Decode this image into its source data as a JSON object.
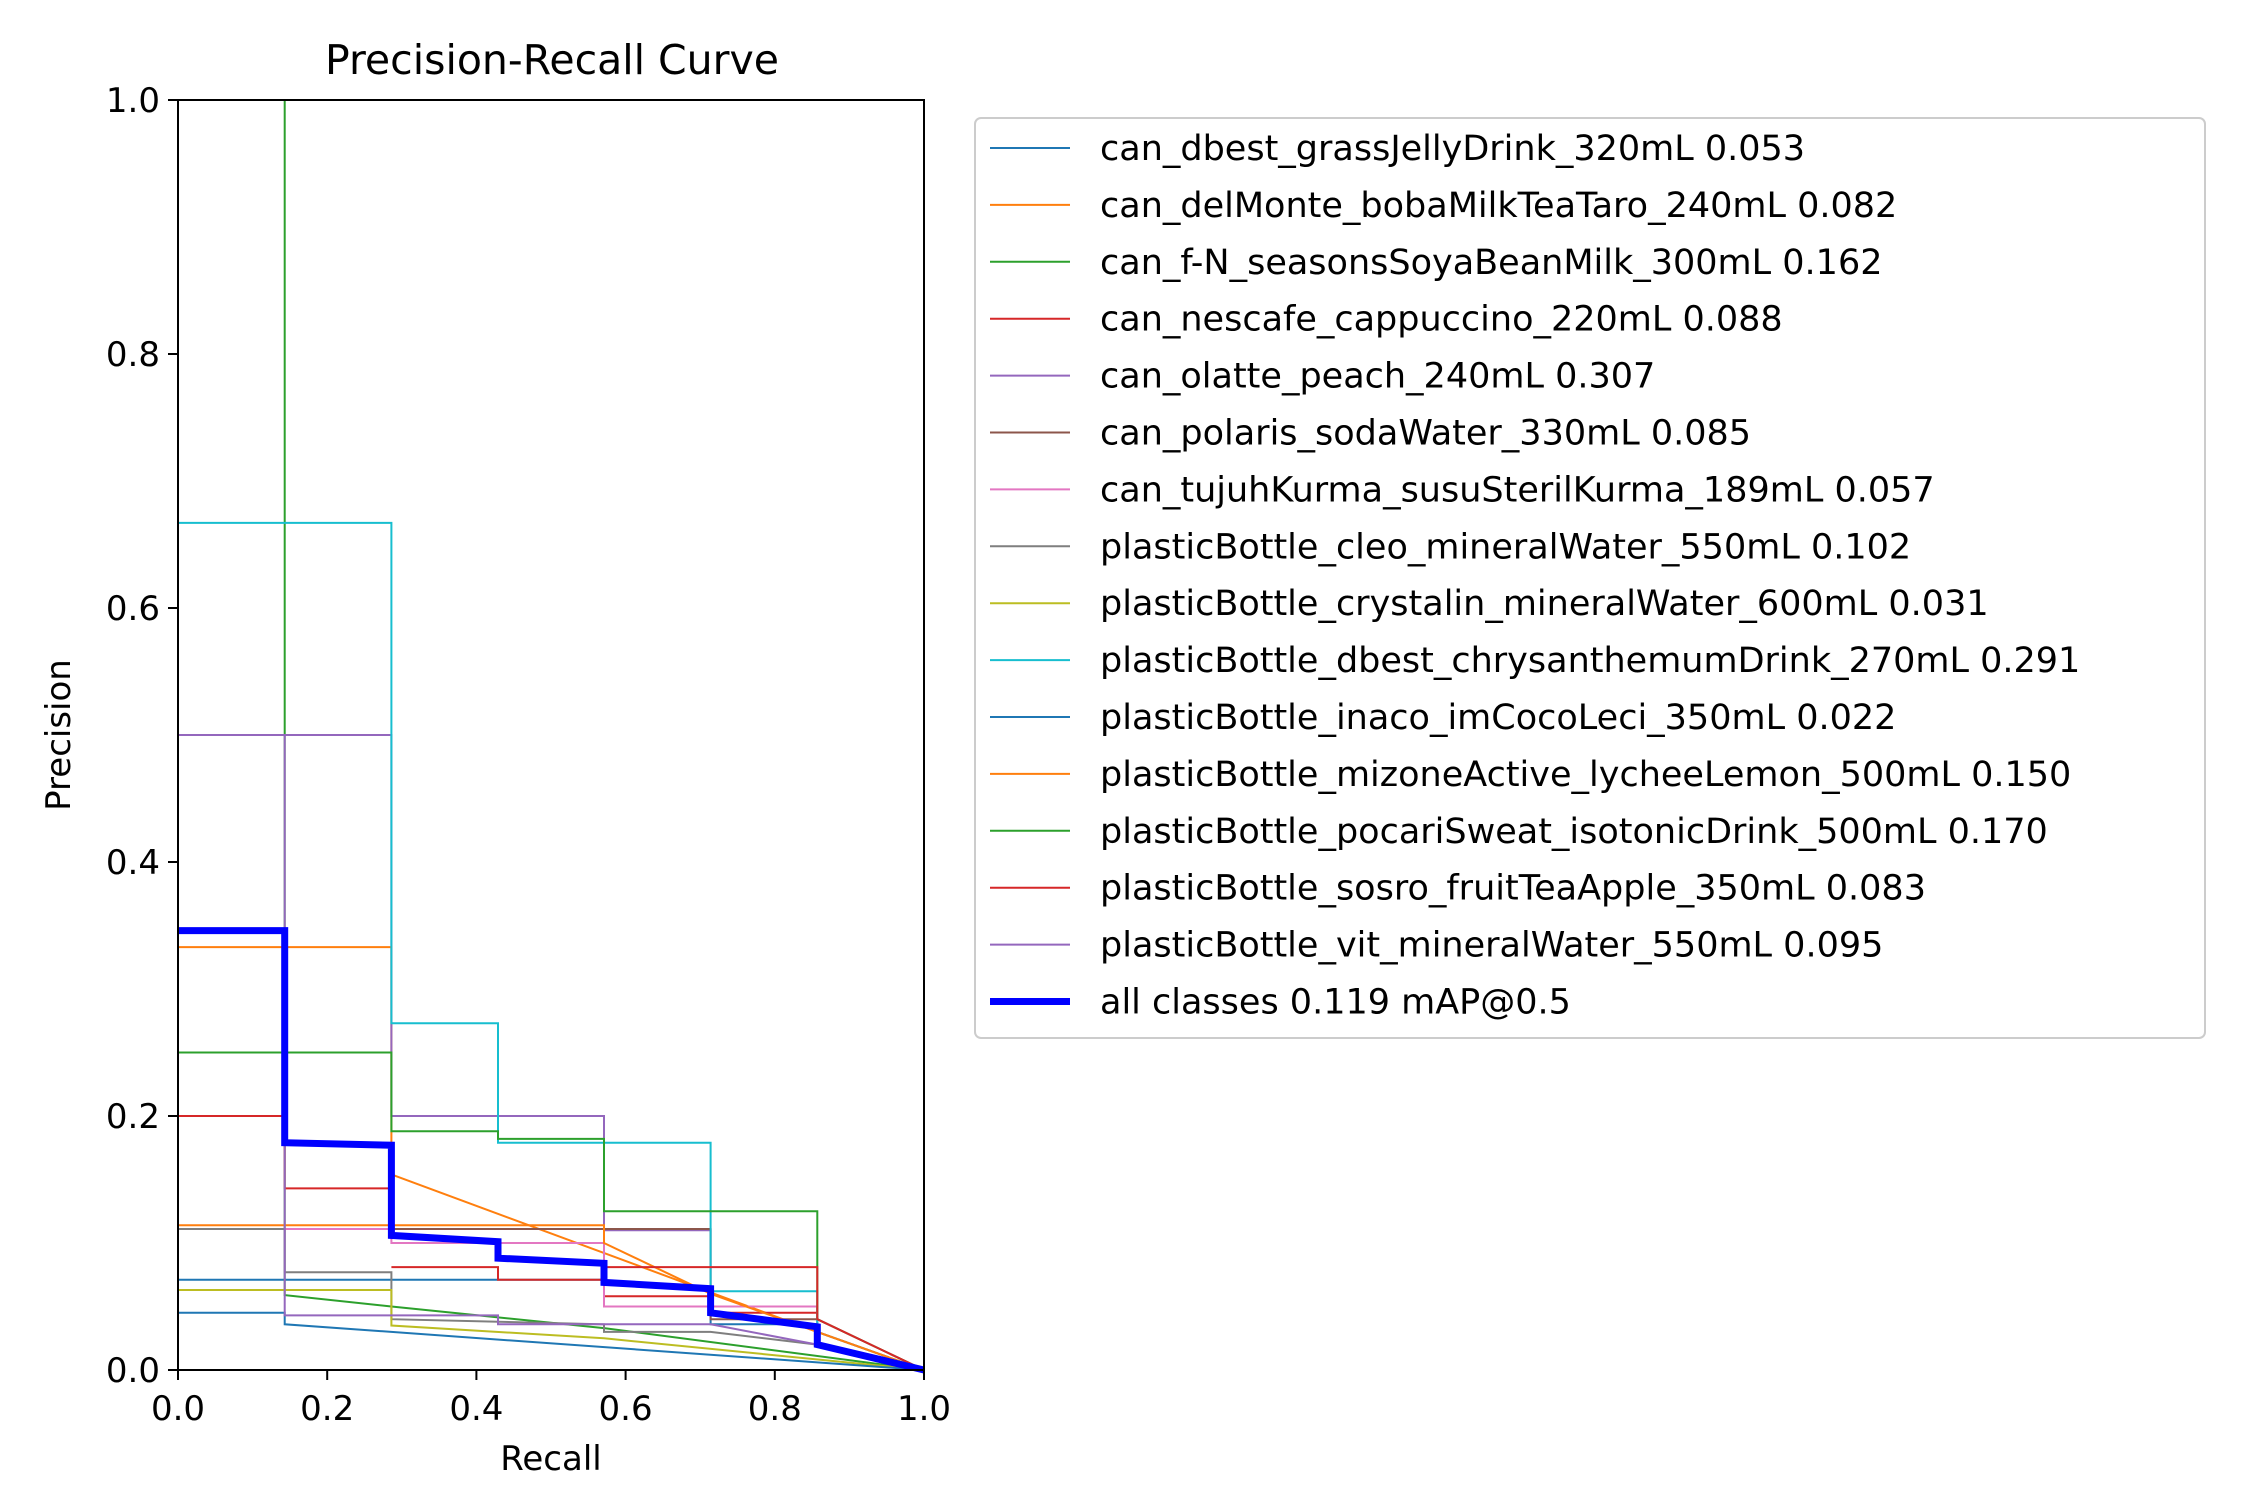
{
  "chart_data": {
    "type": "line",
    "title": "Precision-Recall Curve",
    "xlabel": "Recall",
    "ylabel": "Precision",
    "xlim": [
      0,
      1
    ],
    "ylim": [
      0,
      1
    ],
    "xticks": [
      "0.0",
      "0.2",
      "0.4",
      "0.6",
      "0.8",
      "1.0"
    ],
    "yticks": [
      "0.0",
      "0.2",
      "0.4",
      "0.6",
      "0.8",
      "1.0"
    ],
    "grid": false,
    "legend_position": "outside-right",
    "series": [
      {
        "name": "can_dbest_grassJellyDrink_320mL 0.053",
        "color": "#1f77b4",
        "width": 2,
        "points": [
          [
            0,
            0.071
          ],
          [
            0.286,
            0.071
          ],
          [
            0.286,
            0.071
          ],
          [
            0.571,
            0.071
          ],
          [
            0.571,
            0.05
          ],
          [
            0.714,
            0.05
          ],
          [
            0.714,
            0.036
          ],
          [
            0.857,
            0.036
          ],
          [
            0.857,
            0.02
          ],
          [
            1,
            0
          ]
        ]
      },
      {
        "name": "can_delMonte_bobaMilkTeaTaro_240mL 0.082",
        "color": "#ff7f0e",
        "width": 2,
        "points": [
          [
            0,
            0.333
          ],
          [
            0.286,
            0.333
          ],
          [
            0.286,
            0.154
          ],
          [
            0.857,
            0.03
          ],
          [
            1,
            0
          ]
        ]
      },
      {
        "name": "can_f-N_seasonsSoyaBeanMilk_300mL 0.162",
        "color": "#2ca02c",
        "width": 2,
        "points": [
          [
            0.143,
            1.0
          ],
          [
            0.143,
            0.059
          ],
          [
            0.286,
            0.05
          ],
          [
            0.571,
            0.033
          ],
          [
            1,
            0
          ]
        ]
      },
      {
        "name": "can_nescafe_cappuccino_220mL 0.088",
        "color": "#d62728",
        "width": 2,
        "points": [
          [
            0,
            0.2
          ],
          [
            0.143,
            0.2
          ],
          [
            0.143,
            0.143
          ],
          [
            0.286,
            0.143
          ],
          [
            0.286,
            0.111
          ],
          [
            0.571,
            0.111
          ],
          [
            0.571,
            0.058
          ],
          [
            0.714,
            0.058
          ],
          [
            0.714,
            0.045
          ],
          [
            0.857,
            0.045
          ],
          [
            0.857,
            0.03
          ],
          [
            1,
            0
          ]
        ]
      },
      {
        "name": "can_olatte_peach_240mL 0.307",
        "color": "#9467bd",
        "width": 2,
        "points": [
          [
            0,
            0.5
          ],
          [
            0.286,
            0.5
          ],
          [
            0.286,
            0.2
          ],
          [
            0.429,
            0.2
          ],
          [
            0.571,
            0.2
          ],
          [
            0.571,
            0.11
          ],
          [
            0.714,
            0.11
          ],
          [
            0.714,
            0.05
          ],
          [
            0.857,
            0.05
          ],
          [
            0.857,
            0.02
          ],
          [
            1,
            0
          ]
        ]
      },
      {
        "name": "can_polaris_sodaWater_330mL 0.085",
        "color": "#8c564b",
        "width": 2,
        "points": [
          [
            0,
            0.111
          ],
          [
            0.286,
            0.111
          ],
          [
            0.714,
            0.111
          ],
          [
            0.714,
            0.04
          ],
          [
            0.857,
            0.04
          ],
          [
            1,
            0
          ]
        ]
      },
      {
        "name": "can_tujuhKurma_susuSterilKurma_189mL 0.057",
        "color": "#e377c2",
        "width": 2,
        "points": [
          [
            0,
            0.111
          ],
          [
            0.286,
            0.111
          ],
          [
            0.286,
            0.1
          ],
          [
            0.571,
            0.1
          ],
          [
            0.571,
            0.05
          ],
          [
            0.857,
            0.05
          ],
          [
            0.857,
            0.02
          ],
          [
            1,
            0
          ]
        ]
      },
      {
        "name": "plasticBottle_cleo_mineralWater_550mL 0.102",
        "color": "#7f7f7f",
        "width": 2,
        "points": [
          [
            0,
            0.111
          ],
          [
            0.143,
            0.111
          ],
          [
            0.143,
            0.077
          ],
          [
            0.286,
            0.077
          ],
          [
            0.286,
            0.04
          ],
          [
            0.571,
            0.036
          ],
          [
            0.571,
            0.03
          ],
          [
            0.714,
            0.03
          ],
          [
            0.857,
            0.02
          ],
          [
            1,
            0
          ]
        ]
      },
      {
        "name": "plasticBottle_crystalin_mineralWater_600mL 0.031",
        "color": "#bcbd22",
        "width": 2,
        "points": [
          [
            0,
            0.063
          ],
          [
            0.286,
            0.063
          ],
          [
            0.286,
            0.035
          ],
          [
            0.571,
            0.025
          ],
          [
            1,
            0
          ]
        ]
      },
      {
        "name": "plasticBottle_dbest_chrysanthemumDrink_270mL 0.291",
        "color": "#17becf",
        "width": 2,
        "points": [
          [
            0,
            0.667
          ],
          [
            0.286,
            0.667
          ],
          [
            0.286,
            0.273
          ],
          [
            0.429,
            0.273
          ],
          [
            0.429,
            0.179
          ],
          [
            0.714,
            0.179
          ],
          [
            0.714,
            0.062
          ],
          [
            0.857,
            0.062
          ],
          [
            0.857,
            0.03
          ],
          [
            1,
            0
          ]
        ]
      },
      {
        "name": "plasticBottle_inaco_imCocoLeci_350mL 0.022",
        "color": "#1f77b4",
        "width": 2,
        "points": [
          [
            0,
            0.045
          ],
          [
            0.143,
            0.045
          ],
          [
            0.143,
            0.036
          ],
          [
            1,
            0
          ]
        ]
      },
      {
        "name": "plasticBottle_mizoneActive_lycheeLemon_500mL 0.150",
        "color": "#ff7f0e",
        "width": 2,
        "points": [
          [
            0,
            0.114
          ],
          [
            0.571,
            0.114
          ],
          [
            0.571,
            0.1
          ],
          [
            0.714,
            0.06
          ],
          [
            0.857,
            0.03
          ],
          [
            1,
            0
          ]
        ]
      },
      {
        "name": "plasticBottle_pocariSweat_isotonicDrink_500mL 0.170",
        "color": "#2ca02c",
        "width": 2,
        "points": [
          [
            0,
            0.25
          ],
          [
            0.286,
            0.25
          ],
          [
            0.286,
            0.188
          ],
          [
            0.429,
            0.188
          ],
          [
            0.429,
            0.182
          ],
          [
            0.571,
            0.182
          ],
          [
            0.571,
            0.125
          ],
          [
            0.857,
            0.125
          ],
          [
            0.857,
            0.04
          ],
          [
            1,
            0
          ]
        ]
      },
      {
        "name": "plasticBottle_sosro_fruitTeaApple_350mL 0.083",
        "color": "#d62728",
        "width": 2,
        "points": [
          [
            0.286,
            0.081
          ],
          [
            0.429,
            0.081
          ],
          [
            0.429,
            0.071
          ],
          [
            0.571,
            0.071
          ],
          [
            0.571,
            0.081
          ],
          [
            0.857,
            0.081
          ],
          [
            0.857,
            0.04
          ],
          [
            1,
            0
          ]
        ]
      },
      {
        "name": "plasticBottle_vit_mineralWater_550mL 0.095",
        "color": "#9467bd",
        "width": 2,
        "points": [
          [
            0.143,
            0.5
          ],
          [
            0.143,
            0.043
          ],
          [
            0.429,
            0.043
          ],
          [
            0.429,
            0.036
          ],
          [
            0.714,
            0.036
          ],
          [
            0.857,
            0.02
          ],
          [
            1,
            0
          ]
        ]
      },
      {
        "name": "all classes 0.119 mAP@0.5",
        "color": "#0000ff",
        "width": 7,
        "points": [
          [
            0,
            0.346
          ],
          [
            0.143,
            0.346
          ],
          [
            0.143,
            0.179
          ],
          [
            0.286,
            0.177
          ],
          [
            0.286,
            0.106
          ],
          [
            0.429,
            0.101
          ],
          [
            0.429,
            0.088
          ],
          [
            0.571,
            0.084
          ],
          [
            0.571,
            0.069
          ],
          [
            0.714,
            0.064
          ],
          [
            0.714,
            0.045
          ],
          [
            0.857,
            0.034
          ],
          [
            0.857,
            0.02
          ],
          [
            1,
            0
          ]
        ]
      }
    ]
  }
}
